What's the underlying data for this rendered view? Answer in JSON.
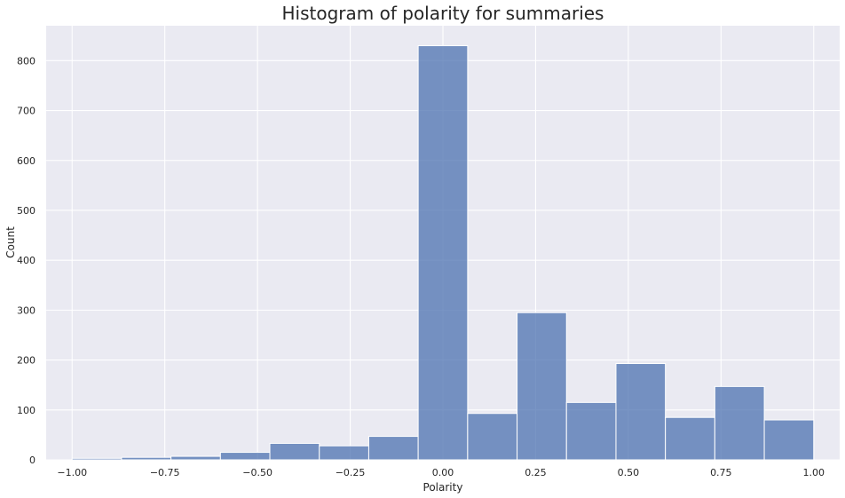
{
  "chart_data": {
    "type": "bar",
    "title": "Histogram of polarity for summaries",
    "xlabel": "Polarity",
    "ylabel": "Count",
    "xlim": [
      -1.07,
      1.07
    ],
    "ylim": [
      0,
      870
    ],
    "x_ticks": [
      -1.0,
      -0.75,
      -0.5,
      -0.25,
      0.0,
      0.25,
      0.5,
      0.75,
      1.0
    ],
    "x_tick_labels": [
      "−1.00",
      "−0.75",
      "−0.50",
      "−0.25",
      "0.00",
      "0.25",
      "0.50",
      "0.75",
      "1.00"
    ],
    "y_ticks": [
      0,
      100,
      200,
      300,
      400,
      500,
      600,
      700,
      800
    ],
    "y_tick_labels": [
      "0",
      "100",
      "200",
      "300",
      "400",
      "500",
      "600",
      "700",
      "800"
    ],
    "bin_edges": [
      -1.0,
      -0.8667,
      -0.7333,
      -0.6,
      -0.4667,
      -0.3333,
      -0.2,
      -0.0667,
      0.0667,
      0.2,
      0.3333,
      0.4667,
      0.6,
      0.7333,
      0.8667,
      1.0
    ],
    "values": [
      3,
      5,
      7,
      15,
      33,
      28,
      47,
      830,
      93,
      295,
      115,
      193,
      85,
      147,
      80
    ],
    "grid": true,
    "colors": {
      "background": "#eaeaf2",
      "bar_fill": "#4c72b0",
      "bar_opacity": 0.75,
      "bar_edge": "#ffffff",
      "grid": "#ffffff"
    }
  }
}
